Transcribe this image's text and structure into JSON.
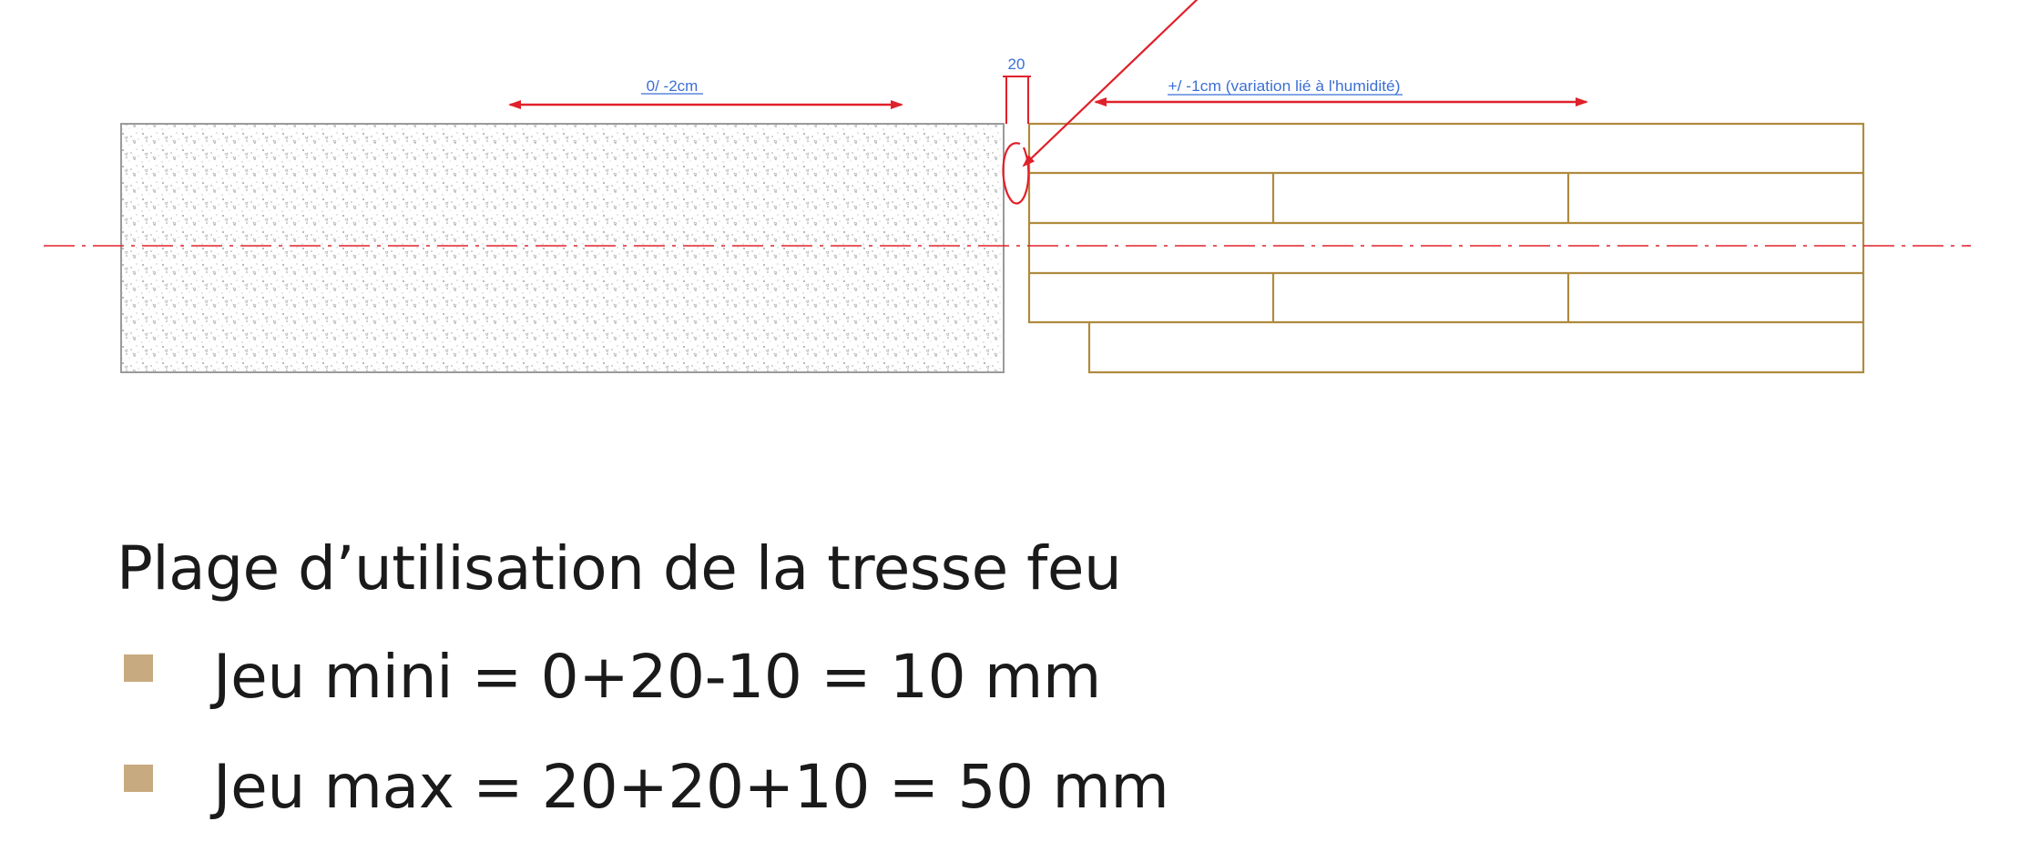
{
  "diagram": {
    "dimension_left": "0/ -2cm",
    "dimension_gap": "20",
    "dimension_right": "+/ -1cm (variation lié à l'humidité)",
    "colors": {
      "concrete_outline": "#9a9a9a",
      "wood": "#b08a3e",
      "annotation": "#e0202a",
      "dimension_text": "#3b6fd6"
    }
  },
  "text": {
    "heading": "Plage d’utilisation de la tresse feu",
    "bullets": [
      "Jeu mini = 0+20-10 = 10 mm",
      "Jeu max = 20+20+10 = 50 mm"
    ],
    "bullet_color": "#c7aa7f"
  }
}
